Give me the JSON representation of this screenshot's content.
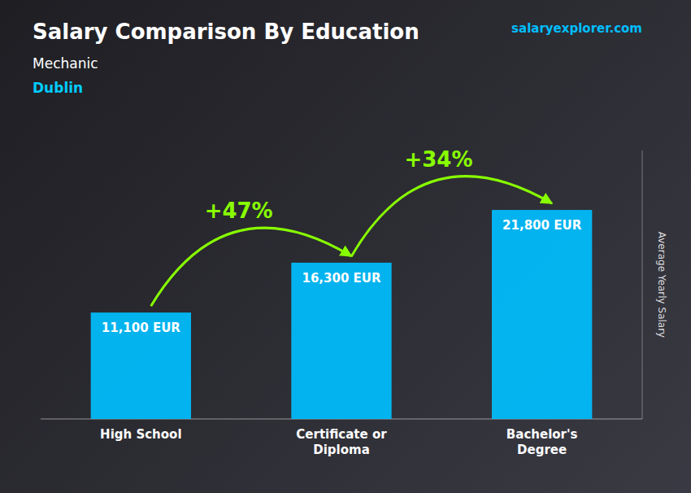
{
  "chart_data": {
    "type": "bar",
    "title": "Salary Comparison By Education",
    "subtitle": [
      "Mechanic",
      "Dublin"
    ],
    "ylabel": "Average Yearly Salary",
    "source": "salaryexplorer.com",
    "categories": [
      "High School",
      "Certificate or\nDiploma",
      "Bachelor's\nDegree"
    ],
    "values": [
      11100,
      16300,
      21800
    ],
    "value_labels": [
      "11,100 EUR",
      "16,300 EUR",
      "21,800 EUR"
    ],
    "data_labels": true,
    "color": "#00bfff",
    "annotations": [
      "+47%",
      "+34%"
    ],
    "ylim": [
      0,
      28000
    ],
    "grid": false,
    "tick_labels": "x"
  }
}
